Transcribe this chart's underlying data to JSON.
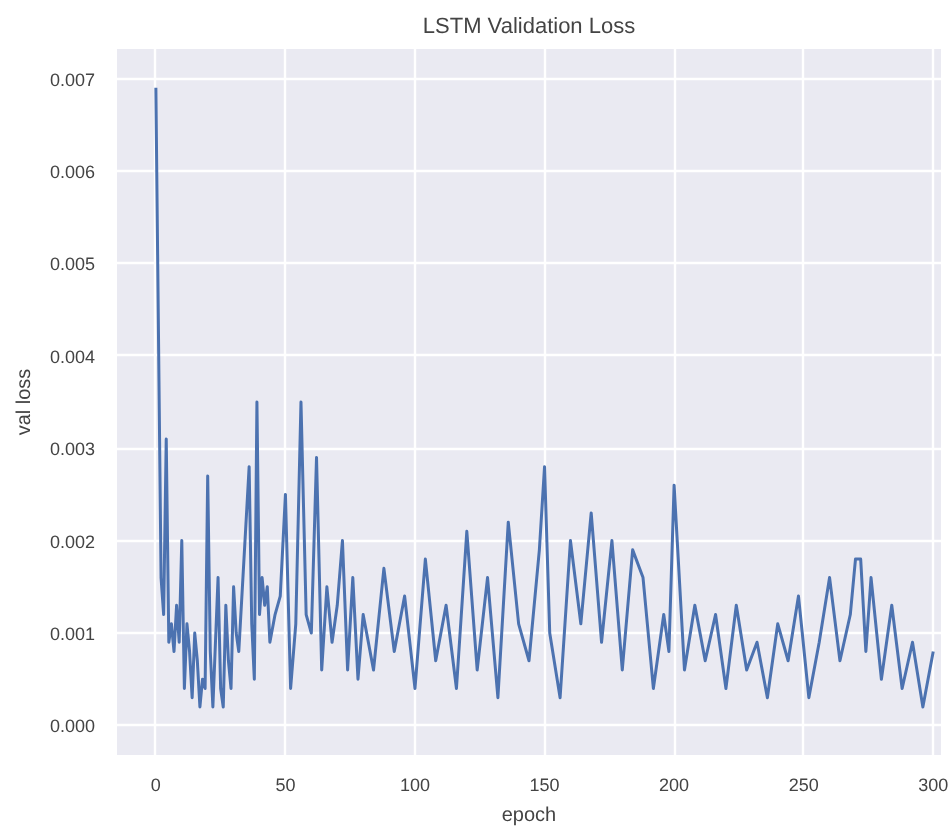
{
  "chart_data": {
    "type": "line",
    "title": "LSTM Validation Loss",
    "xlabel": "epoch",
    "ylabel": "val loss",
    "xlim": [
      -15,
      303
    ],
    "ylim": [
      -0.00032,
      0.00732
    ],
    "xticks": [
      0,
      50,
      100,
      150,
      200,
      250,
      300
    ],
    "yticks": [
      {
        "value": 0,
        "label": "0.000"
      },
      {
        "value": 0.001,
        "label": "0.001"
      },
      {
        "value": 0.002,
        "label": "0.002"
      },
      {
        "value": 0.003,
        "label": "0.003"
      },
      {
        "value": 0.004,
        "label": "0.004"
      },
      {
        "value": 0.005,
        "label": "0.005"
      },
      {
        "value": 0.006,
        "label": "0.006"
      },
      {
        "value": 0.007,
        "label": "0.007"
      }
    ],
    "grid": true,
    "marker": "none",
    "line_style": "solid",
    "series": [
      {
        "color": "#4c72b0",
        "x": [
          0,
          2,
          3,
          4,
          5,
          6,
          7,
          8,
          9,
          10,
          11,
          12,
          13,
          14,
          15,
          16,
          17,
          18,
          19,
          20,
          21,
          22,
          23,
          24,
          25,
          26,
          27,
          28,
          29,
          30,
          31,
          32,
          34,
          36,
          37,
          38,
          39,
          40,
          41,
          42,
          43,
          44,
          46,
          48,
          50,
          52,
          54,
          56,
          58,
          60,
          62,
          64,
          66,
          68,
          70,
          72,
          74,
          76,
          78,
          80,
          84,
          88,
          92,
          96,
          100,
          104,
          108,
          112,
          116,
          120,
          124,
          128,
          132,
          136,
          140,
          144,
          148,
          150,
          152,
          156,
          160,
          164,
          168,
          172,
          176,
          180,
          184,
          188,
          192,
          196,
          198,
          200,
          204,
          208,
          212,
          216,
          220,
          224,
          228,
          232,
          236,
          240,
          244,
          248,
          252,
          256,
          260,
          264,
          268,
          270,
          272,
          274,
          276,
          280,
          284,
          288,
          292,
          296,
          298,
          300
        ],
        "values": [
          0.0069,
          0.0016,
          0.0012,
          0.0031,
          0.0009,
          0.0011,
          0.0008,
          0.0013,
          0.0009,
          0.002,
          0.0004,
          0.0011,
          0.0008,
          0.0003,
          0.001,
          0.0007,
          0.0002,
          0.0005,
          0.0004,
          0.0027,
          0.0008,
          0.0002,
          0.0009,
          0.0016,
          0.0004,
          0.0002,
          0.0013,
          0.0007,
          0.0004,
          0.0015,
          0.001,
          0.0008,
          0.0018,
          0.0028,
          0.0011,
          0.0005,
          0.0035,
          0.0012,
          0.0016,
          0.0013,
          0.0015,
          0.0009,
          0.0012,
          0.0014,
          0.0025,
          0.0004,
          0.0011,
          0.0035,
          0.0012,
          0.001,
          0.0029,
          0.0006,
          0.0015,
          0.0009,
          0.0013,
          0.002,
          0.0006,
          0.0016,
          0.0005,
          0.0012,
          0.0006,
          0.0017,
          0.0008,
          0.0014,
          0.0004,
          0.0018,
          0.0007,
          0.0013,
          0.0004,
          0.0021,
          0.0006,
          0.0016,
          0.0003,
          0.0022,
          0.0011,
          0.0007,
          0.0019,
          0.0028,
          0.001,
          0.0003,
          0.002,
          0.0011,
          0.0023,
          0.0009,
          0.002,
          0.0006,
          0.0019,
          0.0016,
          0.0004,
          0.0012,
          0.0008,
          0.0026,
          0.0006,
          0.0013,
          0.0007,
          0.0012,
          0.0004,
          0.0013,
          0.0006,
          0.0009,
          0.0003,
          0.0011,
          0.0007,
          0.0014,
          0.0003,
          0.0009,
          0.0016,
          0.0007,
          0.0012,
          0.0018,
          0.0018,
          0.0008,
          0.0016,
          0.0005,
          0.0013,
          0.0004,
          0.0009,
          0.0002,
          0.0005,
          0.0008
        ]
      }
    ]
  }
}
